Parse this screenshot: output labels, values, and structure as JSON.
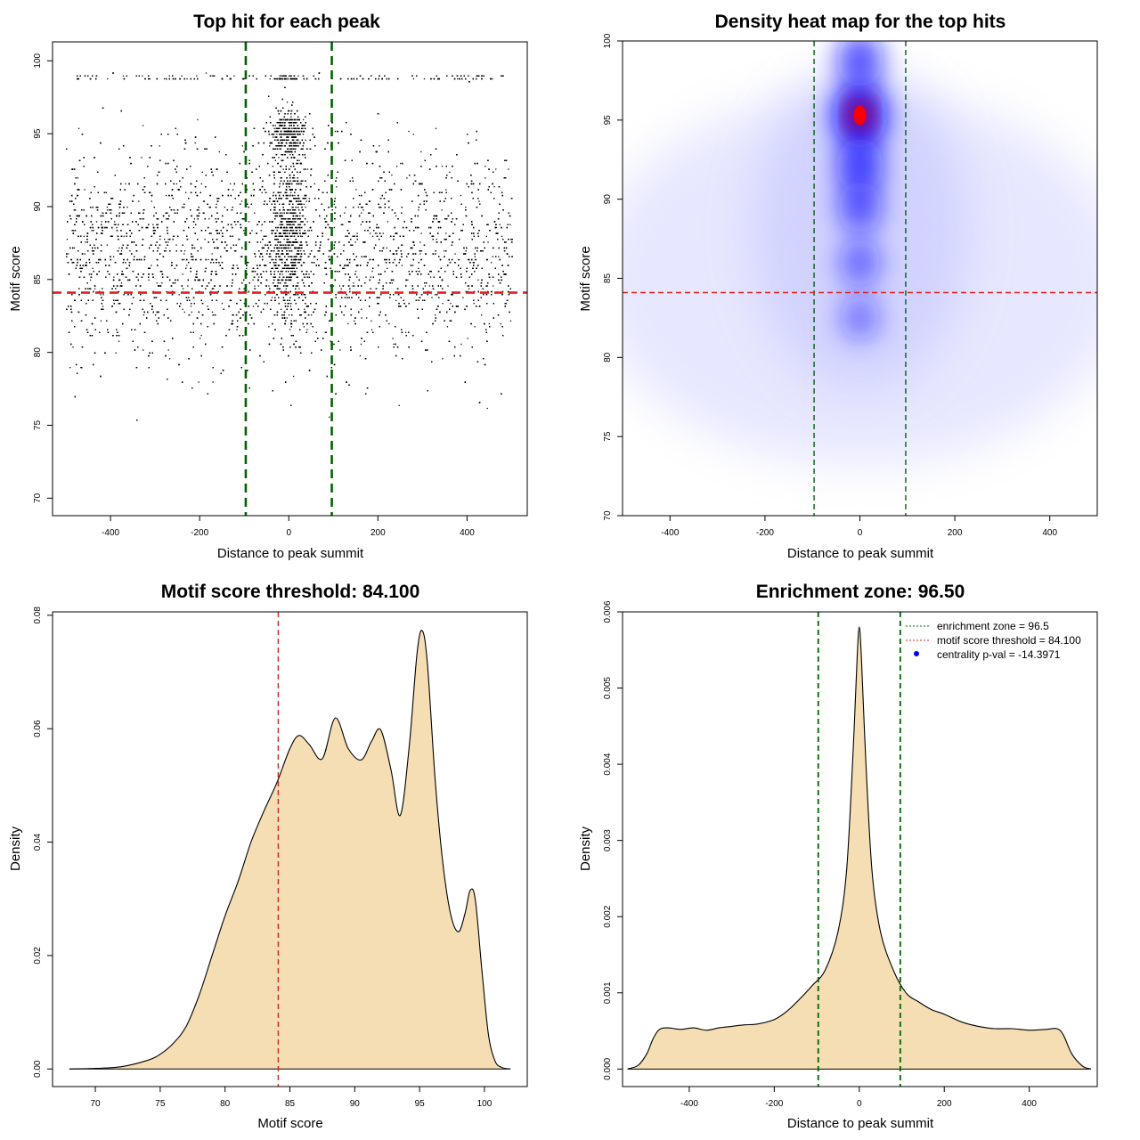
{
  "chart_data": [
    {
      "type": "scatter",
      "title": "Top hit for each peak",
      "xlabel": "Distance to peak summit",
      "ylabel": "Motif score",
      "xlim": [
        -530,
        535
      ],
      "ylim": [
        68.8,
        101.3
      ],
      "xticks": [
        -400,
        -200,
        0,
        200,
        400
      ],
      "yticks": [
        70,
        75,
        80,
        85,
        90,
        95,
        100
      ],
      "xtick_labels": [
        "-400",
        "-200",
        "0",
        "200",
        "400"
      ],
      "ytick_labels": [
        "70",
        "75",
        "80",
        "85",
        "90",
        "95",
        "100"
      ],
      "point_color": "#000000",
      "approx_points": 14000,
      "x_range_of_points": [
        -500,
        500
      ],
      "vlines": [
        {
          "x": -96.5,
          "color": "#006400",
          "style": "dashed"
        },
        {
          "x": 96.5,
          "color": "#006400",
          "style": "dashed"
        }
      ],
      "hlines": [
        {
          "y": 84.1,
          "color": "#dd2222",
          "style": "dashed"
        }
      ]
    },
    {
      "type": "heatmap",
      "title": "Density heat map for the top hits",
      "xlabel": "Distance to peak summit",
      "ylabel": "Motif score",
      "xlim": [
        -500,
        500
      ],
      "ylim": [
        70,
        100
      ],
      "xticks": [
        -400,
        -200,
        0,
        200,
        400
      ],
      "yticks": [
        70,
        75,
        80,
        85,
        90,
        95,
        100
      ],
      "xtick_labels": [
        "-400",
        "-200",
        "0",
        "200",
        "400"
      ],
      "ytick_labels": [
        "70",
        "75",
        "80",
        "85",
        "90",
        "95",
        "100"
      ],
      "colormap": [
        "#ffffff",
        "#0000ff",
        "#ff0000"
      ],
      "density_peaks": [
        {
          "x": 0,
          "y": 95.3,
          "level": 1.0
        },
        {
          "x": 0,
          "y": 98.8,
          "level": 0.55
        },
        {
          "x": 0,
          "y": 92.1,
          "level": 0.6
        },
        {
          "x": 0,
          "y": 89.5,
          "level": 0.45
        },
        {
          "x": 0,
          "y": 86.0,
          "level": 0.3
        },
        {
          "x": 0,
          "y": 82.5,
          "level": 0.18
        }
      ],
      "vlines": [
        {
          "x": -96.5,
          "color": "#006400",
          "style": "dashed"
        },
        {
          "x": 96.5,
          "color": "#006400",
          "style": "dashed"
        }
      ],
      "hlines": [
        {
          "y": 84.1,
          "color": "#dd2222",
          "style": "dashed"
        }
      ]
    },
    {
      "type": "area",
      "title": "Motif score threshold: 84.100",
      "xlabel": "Motif score",
      "ylabel": "Density",
      "xlim": [
        66.7,
        103.3
      ],
      "ylim": [
        -0.0031,
        0.0806
      ],
      "xticks": [
        70,
        75,
        80,
        85,
        90,
        95,
        100
      ],
      "yticks": [
        0.0,
        0.02,
        0.04,
        0.06,
        0.08
      ],
      "xtick_labels": [
        "70",
        "75",
        "80",
        "85",
        "90",
        "95",
        "100"
      ],
      "ytick_labels": [
        "0.00",
        "0.02",
        "0.04",
        "0.06",
        "0.08"
      ],
      "fill_color": "#f5deb3",
      "line_color": "#000000",
      "x": [
        68,
        70,
        72,
        74,
        75,
        76,
        77,
        78,
        79,
        80,
        81,
        82,
        83,
        84,
        85,
        85.7,
        86.5,
        87.5,
        88.5,
        89.5,
        90.5,
        91.3,
        92,
        92.8,
        93.5,
        94.2,
        94.8,
        95.2,
        95.6,
        96.2,
        96.8,
        97.4,
        98,
        98.5,
        98.9,
        99.3,
        99.8,
        100.3,
        100.8,
        101.3,
        102
      ],
      "y": [
        0.0,
        0.0001,
        0.0004,
        0.0015,
        0.0026,
        0.0045,
        0.0075,
        0.013,
        0.02,
        0.027,
        0.033,
        0.04,
        0.0455,
        0.0505,
        0.0565,
        0.0588,
        0.0572,
        0.0547,
        0.0619,
        0.0565,
        0.0545,
        0.0578,
        0.0598,
        0.0527,
        0.0447,
        0.0569,
        0.0732,
        0.0773,
        0.0715,
        0.051,
        0.0362,
        0.0272,
        0.0242,
        0.0274,
        0.0315,
        0.0298,
        0.0175,
        0.0062,
        0.0015,
        0.0003,
        0.0
      ],
      "vlines": [
        {
          "x": 84.1,
          "color": "#dd2222",
          "style": "dashed"
        }
      ]
    },
    {
      "type": "area",
      "title": "Enrichment zone: 96.50",
      "xlabel": "Distance to peak summit",
      "ylabel": "Density",
      "xlim": [
        -557,
        560
      ],
      "ylim": [
        -0.00023,
        0.006
      ],
      "xticks": [
        -400,
        -200,
        0,
        200,
        400
      ],
      "yticks": [
        0.0,
        0.001,
        0.002,
        0.003,
        0.004,
        0.005,
        0.006
      ],
      "xtick_labels": [
        "-400",
        "-200",
        "0",
        "200",
        "400"
      ],
      "ytick_labels": [
        "0.000",
        "0.001",
        "0.002",
        "0.003",
        "0.004",
        "0.005",
        "0.006"
      ],
      "fill_color": "#f5deb3",
      "line_color": "#000000",
      "x": [
        -545,
        -520,
        -500,
        -485,
        -470,
        -450,
        -420,
        -390,
        -360,
        -330,
        -300,
        -270,
        -240,
        -200,
        -170,
        -140,
        -110,
        -80,
        -50,
        -30,
        -15,
        -5,
        0,
        5,
        15,
        30,
        50,
        80,
        110,
        140,
        170,
        200,
        240,
        280,
        320,
        360,
        400,
        440,
        465,
        480,
        500,
        525,
        545
      ],
      "y": [
        0.0,
        5e-05,
        0.0002,
        0.0004,
        0.00052,
        0.00054,
        0.00052,
        0.00054,
        0.00051,
        0.00054,
        0.00056,
        0.00058,
        0.00059,
        0.00065,
        0.00076,
        0.00092,
        0.0011,
        0.0013,
        0.0018,
        0.0026,
        0.0041,
        0.0054,
        0.0058,
        0.0054,
        0.0041,
        0.0026,
        0.0018,
        0.0013,
        0.001,
        0.00088,
        0.00078,
        0.00072,
        0.00062,
        0.00056,
        0.00053,
        0.00053,
        0.00051,
        0.00052,
        0.00053,
        0.00045,
        0.0002,
        4e-05,
        0.0
      ],
      "vlines": [
        {
          "x": -96.5,
          "color": "#006400",
          "style": "dashed"
        },
        {
          "x": 96.5,
          "color": "#006400",
          "style": "dashed"
        }
      ],
      "legend": {
        "placement": "top-right",
        "entries": [
          {
            "label": "enrichment zone = 96.5",
            "color": "#006400",
            "symbol": "dotted-line"
          },
          {
            "label": "motif score threshold = 84.100",
            "color": "#dd2222",
            "symbol": "dotted-line"
          },
          {
            "label": "centrality p-val = -14.3971",
            "color": "#0000ff",
            "symbol": "dot"
          }
        ]
      }
    }
  ]
}
